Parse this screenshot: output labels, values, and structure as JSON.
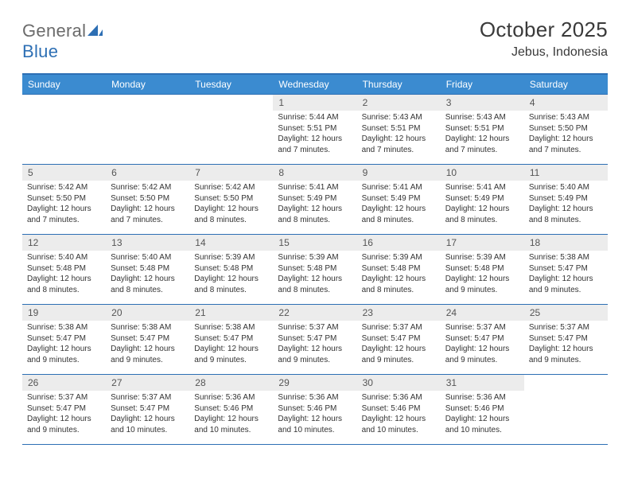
{
  "logo": {
    "text1": "General",
    "text2": "Blue"
  },
  "title": "October 2025",
  "location": "Jebus, Indonesia",
  "colors": {
    "header_bg": "#3b8bd0",
    "header_border": "#2d6fb4",
    "row_border": "#2d6fb4",
    "daynum_bg": "#ececec",
    "logo_gray": "#6b6b6b",
    "logo_blue": "#2d6fb4"
  },
  "dayNames": [
    "Sunday",
    "Monday",
    "Tuesday",
    "Wednesday",
    "Thursday",
    "Friday",
    "Saturday"
  ],
  "weeks": [
    [
      {
        "n": "",
        "sun": "",
        "set": "",
        "day": ""
      },
      {
        "n": "",
        "sun": "",
        "set": "",
        "day": ""
      },
      {
        "n": "",
        "sun": "",
        "set": "",
        "day": ""
      },
      {
        "n": "1",
        "sun": "5:44 AM",
        "set": "5:51 PM",
        "day": "12 hours and 7 minutes."
      },
      {
        "n": "2",
        "sun": "5:43 AM",
        "set": "5:51 PM",
        "day": "12 hours and 7 minutes."
      },
      {
        "n": "3",
        "sun": "5:43 AM",
        "set": "5:51 PM",
        "day": "12 hours and 7 minutes."
      },
      {
        "n": "4",
        "sun": "5:43 AM",
        "set": "5:50 PM",
        "day": "12 hours and 7 minutes."
      }
    ],
    [
      {
        "n": "5",
        "sun": "5:42 AM",
        "set": "5:50 PM",
        "day": "12 hours and 7 minutes."
      },
      {
        "n": "6",
        "sun": "5:42 AM",
        "set": "5:50 PM",
        "day": "12 hours and 7 minutes."
      },
      {
        "n": "7",
        "sun": "5:42 AM",
        "set": "5:50 PM",
        "day": "12 hours and 8 minutes."
      },
      {
        "n": "8",
        "sun": "5:41 AM",
        "set": "5:49 PM",
        "day": "12 hours and 8 minutes."
      },
      {
        "n": "9",
        "sun": "5:41 AM",
        "set": "5:49 PM",
        "day": "12 hours and 8 minutes."
      },
      {
        "n": "10",
        "sun": "5:41 AM",
        "set": "5:49 PM",
        "day": "12 hours and 8 minutes."
      },
      {
        "n": "11",
        "sun": "5:40 AM",
        "set": "5:49 PM",
        "day": "12 hours and 8 minutes."
      }
    ],
    [
      {
        "n": "12",
        "sun": "5:40 AM",
        "set": "5:48 PM",
        "day": "12 hours and 8 minutes."
      },
      {
        "n": "13",
        "sun": "5:40 AM",
        "set": "5:48 PM",
        "day": "12 hours and 8 minutes."
      },
      {
        "n": "14",
        "sun": "5:39 AM",
        "set": "5:48 PM",
        "day": "12 hours and 8 minutes."
      },
      {
        "n": "15",
        "sun": "5:39 AM",
        "set": "5:48 PM",
        "day": "12 hours and 8 minutes."
      },
      {
        "n": "16",
        "sun": "5:39 AM",
        "set": "5:48 PM",
        "day": "12 hours and 8 minutes."
      },
      {
        "n": "17",
        "sun": "5:39 AM",
        "set": "5:48 PM",
        "day": "12 hours and 9 minutes."
      },
      {
        "n": "18",
        "sun": "5:38 AM",
        "set": "5:47 PM",
        "day": "12 hours and 9 minutes."
      }
    ],
    [
      {
        "n": "19",
        "sun": "5:38 AM",
        "set": "5:47 PM",
        "day": "12 hours and 9 minutes."
      },
      {
        "n": "20",
        "sun": "5:38 AM",
        "set": "5:47 PM",
        "day": "12 hours and 9 minutes."
      },
      {
        "n": "21",
        "sun": "5:38 AM",
        "set": "5:47 PM",
        "day": "12 hours and 9 minutes."
      },
      {
        "n": "22",
        "sun": "5:37 AM",
        "set": "5:47 PM",
        "day": "12 hours and 9 minutes."
      },
      {
        "n": "23",
        "sun": "5:37 AM",
        "set": "5:47 PM",
        "day": "12 hours and 9 minutes."
      },
      {
        "n": "24",
        "sun": "5:37 AM",
        "set": "5:47 PM",
        "day": "12 hours and 9 minutes."
      },
      {
        "n": "25",
        "sun": "5:37 AM",
        "set": "5:47 PM",
        "day": "12 hours and 9 minutes."
      }
    ],
    [
      {
        "n": "26",
        "sun": "5:37 AM",
        "set": "5:47 PM",
        "day": "12 hours and 9 minutes."
      },
      {
        "n": "27",
        "sun": "5:37 AM",
        "set": "5:47 PM",
        "day": "12 hours and 10 minutes."
      },
      {
        "n": "28",
        "sun": "5:36 AM",
        "set": "5:46 PM",
        "day": "12 hours and 10 minutes."
      },
      {
        "n": "29",
        "sun": "5:36 AM",
        "set": "5:46 PM",
        "day": "12 hours and 10 minutes."
      },
      {
        "n": "30",
        "sun": "5:36 AM",
        "set": "5:46 PM",
        "day": "12 hours and 10 minutes."
      },
      {
        "n": "31",
        "sun": "5:36 AM",
        "set": "5:46 PM",
        "day": "12 hours and 10 minutes."
      },
      {
        "n": "",
        "sun": "",
        "set": "",
        "day": ""
      }
    ]
  ],
  "labels": {
    "sunrise": "Sunrise: ",
    "sunset": "Sunset: ",
    "daylight": "Daylight: "
  }
}
